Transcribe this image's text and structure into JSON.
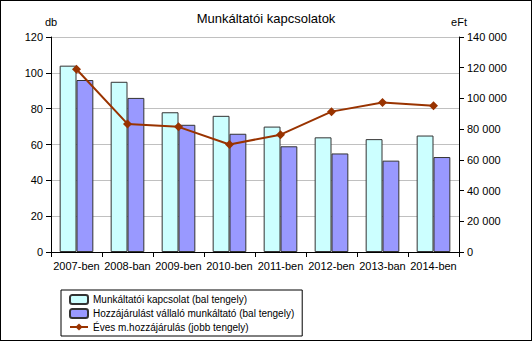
{
  "chart_data": {
    "type": "bar",
    "title": "Munkáltatói kapcsolatok",
    "y_label": "db",
    "y2_label": "eFt",
    "categories": [
      "2007-ben",
      "2008-ban",
      "2009-ben",
      "2010-ben",
      "2011-ben",
      "2012-ben",
      "2013-ban",
      "2014-ben"
    ],
    "series": [
      {
        "name": "Munkáltatói kapcsolat (bal tengely)",
        "type": "bar",
        "color": "#ccffff",
        "values": [
          104,
          95,
          78,
          76,
          70,
          64,
          63,
          65
        ]
      },
      {
        "name": "Hozzájárulást vállaló munkáltató (bal tengely)",
        "type": "bar",
        "color": "#9999ff",
        "values": [
          96,
          86,
          71,
          66,
          59,
          55,
          51,
          53
        ]
      },
      {
        "name": "Éves m.hozzájárulás (jobb tengely)",
        "type": "line",
        "axis": "y2",
        "color": "#993300",
        "marker": "diamond",
        "values": [
          119000,
          83400,
          81500,
          70000,
          76400,
          91400,
          97300,
          95200
        ]
      }
    ],
    "ylim": [
      0,
      120
    ],
    "yticks": [
      0,
      20,
      40,
      60,
      80,
      100,
      120
    ],
    "y2lim": [
      0,
      140000
    ],
    "y2ticks": [
      0,
      {
        "value": 20000,
        "label": "20 000"
      },
      {
        "value": 40000,
        "label": "40 000"
      },
      {
        "value": 60000,
        "label": "60 000"
      },
      {
        "value": 80000,
        "label": "80 000"
      },
      {
        "value": 100000,
        "label": "100 000"
      },
      {
        "value": 120000,
        "label": "120 000"
      },
      {
        "value": 140000,
        "label": "140 000"
      }
    ],
    "grid": true,
    "legend": "bottom"
  }
}
